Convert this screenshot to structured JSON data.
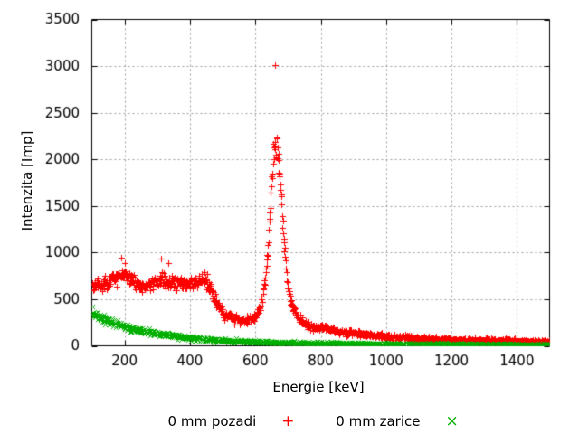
{
  "figure": {
    "background_color": "#ffffff",
    "plot_border_color": "#000000",
    "grid_color": "#9c9c9c",
    "text_color": "#000000"
  },
  "chart_data": {
    "type": "scatter",
    "title": "",
    "xlabel": "Energie [keV]",
    "ylabel": "Intenzita [Imp]",
    "xlim": [
      100,
      1500
    ],
    "ylim": [
      0,
      3500
    ],
    "xticks": [
      200,
      400,
      600,
      800,
      1000,
      1200,
      1400
    ],
    "yticks": [
      0,
      500,
      1000,
      1500,
      2000,
      2500,
      3000,
      3500
    ],
    "grid": "dashed",
    "legend_position": "below-plot-center",
    "series": [
      {
        "name": "0 mm pozadi",
        "marker": "+",
        "color": "#ff0000",
        "profile_x": [
          100,
          110,
          120,
          130,
          140,
          150,
          160,
          170,
          180,
          190,
          200,
          210,
          220,
          230,
          240,
          250,
          260,
          270,
          280,
          290,
          300,
          310,
          320,
          330,
          340,
          350,
          360,
          370,
          380,
          390,
          400,
          410,
          420,
          430,
          440,
          450,
          460,
          470,
          480,
          490,
          500,
          510,
          520,
          530,
          540,
          550,
          560,
          570,
          580,
          590,
          600,
          610,
          620,
          630,
          635,
          640,
          645,
          650,
          655,
          660,
          665,
          670,
          675,
          680,
          685,
          690,
          695,
          700,
          705,
          710,
          715,
          720,
          730,
          740,
          750,
          760,
          770,
          780,
          790,
          800,
          820,
          840,
          860,
          880,
          900,
          920,
          940,
          960,
          980,
          1000,
          1050,
          1100,
          1150,
          1200,
          1250,
          1300,
          1350,
          1400,
          1450,
          1500
        ],
        "profile_y": [
          650,
          655,
          660,
          655,
          660,
          680,
          700,
          730,
          750,
          760,
          755,
          740,
          715,
          685,
          660,
          640,
          635,
          645,
          660,
          675,
          685,
          690,
          690,
          685,
          680,
          690,
          695,
          685,
          675,
          670,
          670,
          680,
          690,
          700,
          710,
          700,
          640,
          560,
          480,
          410,
          360,
          330,
          310,
          300,
          292,
          283,
          275,
          274,
          280,
          292,
          325,
          380,
          480,
          700,
          900,
          1150,
          1450,
          1750,
          2000,
          2150,
          2120,
          2000,
          1800,
          1520,
          1250,
          1000,
          800,
          650,
          540,
          460,
          410,
          370,
          310,
          270,
          240,
          220,
          208,
          200,
          197,
          195,
          180,
          168,
          156,
          145,
          136,
          128,
          120,
          113,
          107,
          102,
          90,
          81,
          74,
          68,
          63,
          59,
          56,
          53,
          50,
          48
        ],
        "outliers": [
          [
            660,
            3010
          ],
          [
            190,
            945
          ],
          [
            312,
            935
          ],
          [
            335,
            885
          ]
        ],
        "noise_sigma_scale": 1.4,
        "sample_step_kev": 1.2
      },
      {
        "name": "0 mm zarice",
        "marker": "×",
        "color": "#00b000",
        "profile_x": [
          100,
          120,
          140,
          160,
          180,
          200,
          220,
          240,
          260,
          280,
          300,
          320,
          340,
          360,
          380,
          400,
          420,
          440,
          460,
          480,
          500,
          520,
          540,
          560,
          580,
          600,
          620,
          640,
          660,
          680,
          700,
          750,
          800,
          850,
          900,
          950,
          1000,
          1050,
          1100,
          1150,
          1200,
          1250,
          1300,
          1350,
          1400,
          1450,
          1500
        ],
        "profile_y": [
          350,
          315,
          285,
          258,
          234,
          211,
          192,
          174,
          158,
          144,
          131,
          120,
          110,
          101,
          92,
          85,
          78,
          72,
          66,
          62,
          58,
          54,
          50,
          47,
          45,
          43,
          40,
          38,
          36,
          35,
          34,
          30,
          27,
          25,
          23,
          21,
          20,
          19,
          18,
          18,
          17,
          16,
          16,
          15,
          15,
          14,
          14
        ],
        "outliers": [],
        "noise_sigma_scale": 1.4,
        "sample_step_kev": 1.2
      }
    ]
  }
}
